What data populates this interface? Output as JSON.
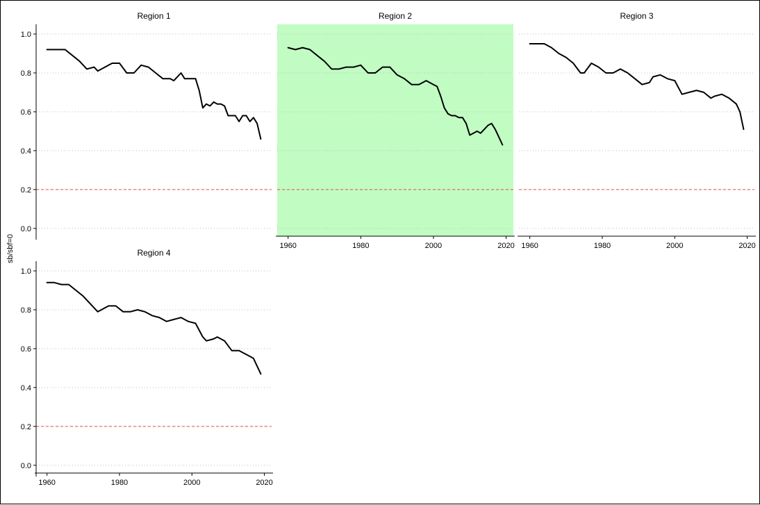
{
  "colors": {
    "highlight": "#c1fcc3",
    "reference_line": "#e0524a",
    "series_line": "#000000",
    "gridline": "#bfbfbf"
  },
  "chart_data": {
    "type": "line",
    "layout": "faceted",
    "ylabel": "sb/sbf=0",
    "xlabel": "",
    "xlim": [
      1957,
      2022
    ],
    "ylim": [
      -0.04,
      1.05
    ],
    "y_ticks": [
      0.0,
      0.2,
      0.4,
      0.6,
      0.8,
      1.0
    ],
    "y_tick_labels": [
      "0.0",
      "0.2",
      "0.4",
      "0.6",
      "0.8",
      "1.0"
    ],
    "x_ticks": [
      1960,
      1980,
      2000,
      2020
    ],
    "x_tick_labels": [
      "1960",
      "1980",
      "2000",
      "2020"
    ],
    "grid": "horizontal dotted",
    "reference_line": {
      "y": 0.2,
      "style": "dashed"
    },
    "highlighted_panel": "Region 2",
    "panels": [
      {
        "title": "Region 1",
        "x": [
          1960,
          1963,
          1965,
          1967,
          1969,
          1971,
          1973,
          1974,
          1976,
          1978,
          1980,
          1982,
          1984,
          1986,
          1988,
          1990,
          1992,
          1994,
          1995,
          1997,
          1998,
          1999,
          2001,
          2002,
          2003,
          2004,
          2005,
          2006,
          2007,
          2008,
          2009,
          2010,
          2011,
          2012,
          2013,
          2014,
          2015,
          2016,
          2017,
          2018,
          2019
        ],
        "y": [
          0.92,
          0.92,
          0.92,
          0.89,
          0.86,
          0.82,
          0.83,
          0.81,
          0.83,
          0.85,
          0.85,
          0.8,
          0.8,
          0.84,
          0.83,
          0.8,
          0.77,
          0.77,
          0.76,
          0.8,
          0.77,
          0.77,
          0.77,
          0.71,
          0.62,
          0.64,
          0.63,
          0.65,
          0.64,
          0.64,
          0.63,
          0.58,
          0.58,
          0.58,
          0.55,
          0.58,
          0.58,
          0.55,
          0.57,
          0.54,
          0.46
        ]
      },
      {
        "title": "Region 2",
        "x": [
          1960,
          1962,
          1964,
          1966,
          1968,
          1970,
          1972,
          1974,
          1976,
          1978,
          1980,
          1982,
          1984,
          1986,
          1988,
          1990,
          1992,
          1994,
          1996,
          1998,
          2000,
          2001,
          2002,
          2003,
          2004,
          2005,
          2006,
          2007,
          2008,
          2009,
          2010,
          2011,
          2012,
          2013,
          2014,
          2015,
          2016,
          2017,
          2018,
          2019
        ],
        "y": [
          0.93,
          0.92,
          0.93,
          0.92,
          0.89,
          0.86,
          0.82,
          0.82,
          0.83,
          0.83,
          0.84,
          0.8,
          0.8,
          0.83,
          0.83,
          0.79,
          0.77,
          0.74,
          0.74,
          0.76,
          0.74,
          0.73,
          0.68,
          0.62,
          0.59,
          0.58,
          0.58,
          0.57,
          0.57,
          0.54,
          0.48,
          0.49,
          0.5,
          0.49,
          0.51,
          0.53,
          0.54,
          0.51,
          0.47,
          0.43
        ]
      },
      {
        "title": "Region 3",
        "x": [
          1960,
          1962,
          1964,
          1966,
          1968,
          1970,
          1972,
          1974,
          1975,
          1977,
          1979,
          1981,
          1983,
          1985,
          1987,
          1989,
          1991,
          1993,
          1994,
          1996,
          1998,
          2000,
          2002,
          2004,
          2006,
          2008,
          2010,
          2011,
          2013,
          2015,
          2017,
          2018,
          2019
        ],
        "y": [
          0.95,
          0.95,
          0.95,
          0.93,
          0.9,
          0.88,
          0.85,
          0.8,
          0.8,
          0.85,
          0.83,
          0.8,
          0.8,
          0.82,
          0.8,
          0.77,
          0.74,
          0.75,
          0.78,
          0.79,
          0.77,
          0.76,
          0.69,
          0.7,
          0.71,
          0.7,
          0.67,
          0.68,
          0.69,
          0.67,
          0.64,
          0.6,
          0.51
        ]
      },
      {
        "title": "Region 4",
        "x": [
          1960,
          1962,
          1964,
          1966,
          1968,
          1970,
          1972,
          1974,
          1975,
          1977,
          1979,
          1981,
          1983,
          1985,
          1987,
          1989,
          1991,
          1993,
          1995,
          1997,
          1999,
          2001,
          2003,
          2004,
          2006,
          2007,
          2009,
          2011,
          2013,
          2015,
          2017,
          2018,
          2019
        ],
        "y": [
          0.94,
          0.94,
          0.93,
          0.93,
          0.9,
          0.87,
          0.83,
          0.79,
          0.8,
          0.82,
          0.82,
          0.79,
          0.79,
          0.8,
          0.79,
          0.77,
          0.76,
          0.74,
          0.75,
          0.76,
          0.74,
          0.73,
          0.66,
          0.64,
          0.65,
          0.66,
          0.64,
          0.59,
          0.59,
          0.57,
          0.55,
          0.51,
          0.47
        ]
      }
    ]
  }
}
